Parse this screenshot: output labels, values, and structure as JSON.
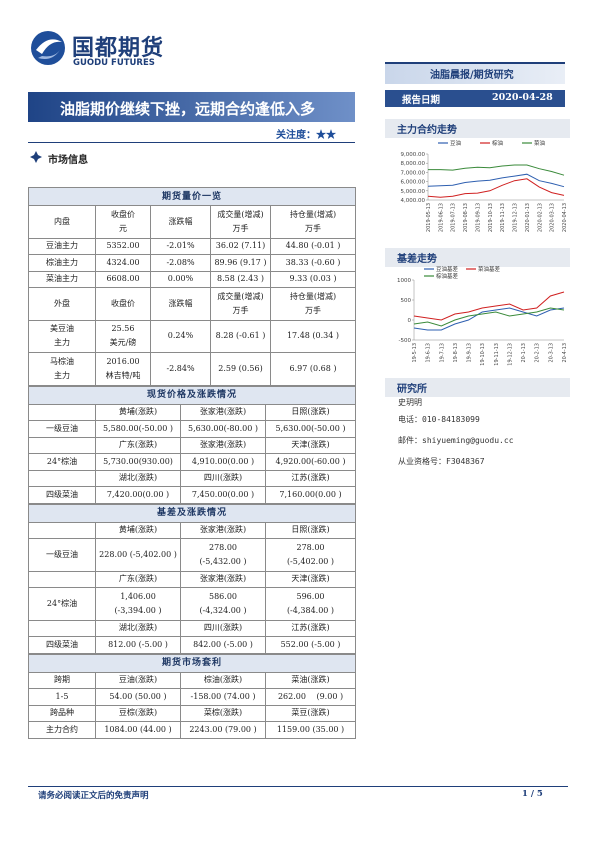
{
  "header": {
    "logo_cn": "国都期货",
    "logo_en": "GUODU FUTURES",
    "category": "油脂晨报/期货研究",
    "date_label": "报告日期",
    "date": "2020-04-28"
  },
  "title": "油脂期价继续下挫，远期合约逢低入多",
  "attention": "关注度：★★",
  "section_title": "市场信息",
  "table": {
    "sections": [
      {
        "title": "期货量价一览",
        "rows": [
          [
            "内盘",
            [
              "收盘价",
              "元"
            ],
            "涨跌幅",
            [
              "成交量(增减)",
              "万手"
            ],
            [
              "持仓量(增减)",
              "万手"
            ]
          ],
          [
            "豆油主力",
            "5352.00",
            "-2.01%",
            "36.02 (7.11)",
            "44.80 (-0.01 )"
          ],
          [
            "棕油主力",
            "4324.00",
            "-2.08%",
            "89.96 (9.17 )",
            "38.33 (-0.60 )"
          ],
          [
            "菜油主力",
            "6608.00",
            "0.00%",
            "8.58 (2.43 )",
            "9.33 (0.03 )"
          ],
          [
            "外盘",
            "收盘价",
            "涨跌幅",
            [
              "成交量(增减)",
              "万手"
            ],
            [
              "持仓量(增减)",
              "万手"
            ]
          ],
          [
            [
              "美豆油",
              "主力"
            ],
            [
              "25.56",
              "美元/磅"
            ],
            "0.24%",
            "8.28 (-0.61 )",
            "17.48 (0.34 )"
          ],
          [
            [
              "马棕油",
              "主力"
            ],
            [
              "2016.00",
              "林吉特/吨"
            ],
            "-2.84%",
            "2.59 (0.56)",
            "6.97 (0.68 )"
          ]
        ]
      },
      {
        "title": "现货价格及涨跌情况",
        "rows": [
          [
            "黄埔(涨跌)",
            "张家港(涨跌)",
            "日照(涨跌)"
          ],
          [
            "一级豆油",
            "5,580.00(-50.00 )",
            "5,630.00(-80.00 )",
            "5,630.00(-50.00 )"
          ],
          [
            "广东(涨跌)",
            "张家港(涨跌)",
            "天津(涨跌)"
          ],
          [
            "24°棕油",
            "5,730.00(930.00)",
            "4,910.00(0.00 )",
            "4,920.00(-60.00 )"
          ],
          [
            "湖北(涨跌)",
            "四川(涨跌)",
            "江苏(涨跌)"
          ],
          [
            "四级菜油",
            "7,420.00(0.00 )",
            "7,450.00(0.00 )",
            "7,160.00(0.00 )"
          ]
        ]
      },
      {
        "title": "基差及涨跌情况",
        "rows": [
          [
            "黄埔(涨跌)",
            "张家港(涨跌)",
            "日照(涨跌)"
          ],
          [
            "一级豆油",
            "228.00 (-5,402.00 )",
            [
              "278.00",
              "(-5,432.00 )"
            ],
            [
              "278.00",
              "(-5,402.00 )"
            ]
          ],
          [
            "广东(涨跌)",
            "张家港(涨跌)",
            "天津(涨跌)"
          ],
          [
            "24°棕油",
            [
              "1,406.00",
              "(-3,394.00 )"
            ],
            [
              "586.00",
              "(-4,324.00 )"
            ],
            [
              "596.00",
              "(-4,384.00 )"
            ]
          ],
          [
            "湖北(涨跌)",
            "四川(涨跌)",
            "江苏(涨跌)"
          ],
          [
            "四级菜油",
            "812.00 (-5.00 )",
            "842.00 (-5.00 )",
            "552.00 (-5.00 )"
          ]
        ]
      },
      {
        "title": "期货市场套利",
        "rows": [
          [
            "跨期",
            "豆油(涨跌)",
            "棕油(涨跌)",
            "菜油(涨跌)"
          ],
          [
            "1-5",
            "54.00 (50.00 )",
            "-158.00 (74.00 )",
            "262.00 　(9.00 )"
          ],
          [
            "跨品种",
            "豆棕(涨跌)",
            "菜棕(涨跌)",
            "菜豆(涨跌)"
          ],
          [
            "主力合约",
            "1084.00 (44.00 )",
            "2243.00 (79.00 )",
            "1159.00 (35.00 )"
          ]
        ]
      }
    ]
  },
  "chart_data": [
    {
      "type": "line",
      "title": "主力合约走势",
      "categories": [
        "2019-05-13",
        "2019-06-13",
        "2019-07-13",
        "2019-08-13",
        "2019-09-13",
        "2019-10-13",
        "2019-11-13",
        "2019-12-13",
        "2020-01-13",
        "2020-02-13",
        "2020-03-13",
        "2020-04-13"
      ],
      "series": [
        {
          "name": "豆油",
          "color": "#2e5fb0",
          "values": [
            5500,
            5550,
            5600,
            5900,
            6050,
            6150,
            6400,
            6600,
            6800,
            6100,
            5800,
            5450
          ]
        },
        {
          "name": "棕油",
          "color": "#d02020",
          "values": [
            4400,
            4300,
            4400,
            4700,
            4750,
            5000,
            5600,
            6100,
            6300,
            5400,
            4800,
            4500
          ]
        },
        {
          "name": "菜油",
          "color": "#3a8a3a",
          "values": [
            7300,
            7300,
            7250,
            7450,
            7550,
            7500,
            7700,
            7800,
            7800,
            7400,
            7100,
            6700
          ]
        }
      ],
      "ylim": [
        4000,
        9000
      ],
      "yticks": [
        {
          "value": 4000,
          "label": "4,000.00"
        },
        {
          "value": 5000,
          "label": "5,000.00"
        },
        {
          "value": 6000,
          "label": "6,000.00"
        },
        {
          "value": 7000,
          "label": "7,000.00"
        },
        {
          "value": 8000,
          "label": "8,000.00"
        },
        {
          "value": 9000,
          "label": "9,000.00"
        }
      ],
      "legend": "top"
    },
    {
      "type": "line",
      "title": "基差走势",
      "categories": [
        "19-5-13",
        "19-6-13",
        "19-7-13",
        "19-8-13",
        "19-9-13",
        "19-10-13",
        "19-11-13",
        "19-12-13",
        "20-1-13",
        "20-2-13",
        "20-3-13",
        "20-4-13"
      ],
      "series": [
        {
          "name": "豆油基差",
          "color": "#2e5fb0",
          "values": [
            -200,
            -250,
            -250,
            -100,
            0,
            200,
            250,
            300,
            200,
            100,
            250,
            300
          ]
        },
        {
          "name": "菜油基差",
          "color": "#d02020",
          "values": [
            100,
            50,
            0,
            150,
            200,
            300,
            350,
            400,
            250,
            300,
            600,
            700
          ]
        },
        {
          "name": "棕油基差",
          "color": "#3a8a3a",
          "values": [
            -100,
            -50,
            -150,
            0,
            100,
            150,
            200,
            100,
            150,
            200,
            300,
            250
          ]
        }
      ],
      "ylim": [
        -500,
        1000
      ],
      "yticks": [
        -500,
        0,
        500,
        1000
      ],
      "legend": "top"
    }
  ],
  "research": {
    "title": "研究所",
    "name": "史玥明",
    "phone": "电话：010-84183099",
    "email": "邮件：shiyueming@guodu.cc",
    "license": "从业资格号：F3048367"
  },
  "footer": {
    "disclaimer": "请务必阅读正文后的免责声明",
    "page": "1 / 5"
  }
}
